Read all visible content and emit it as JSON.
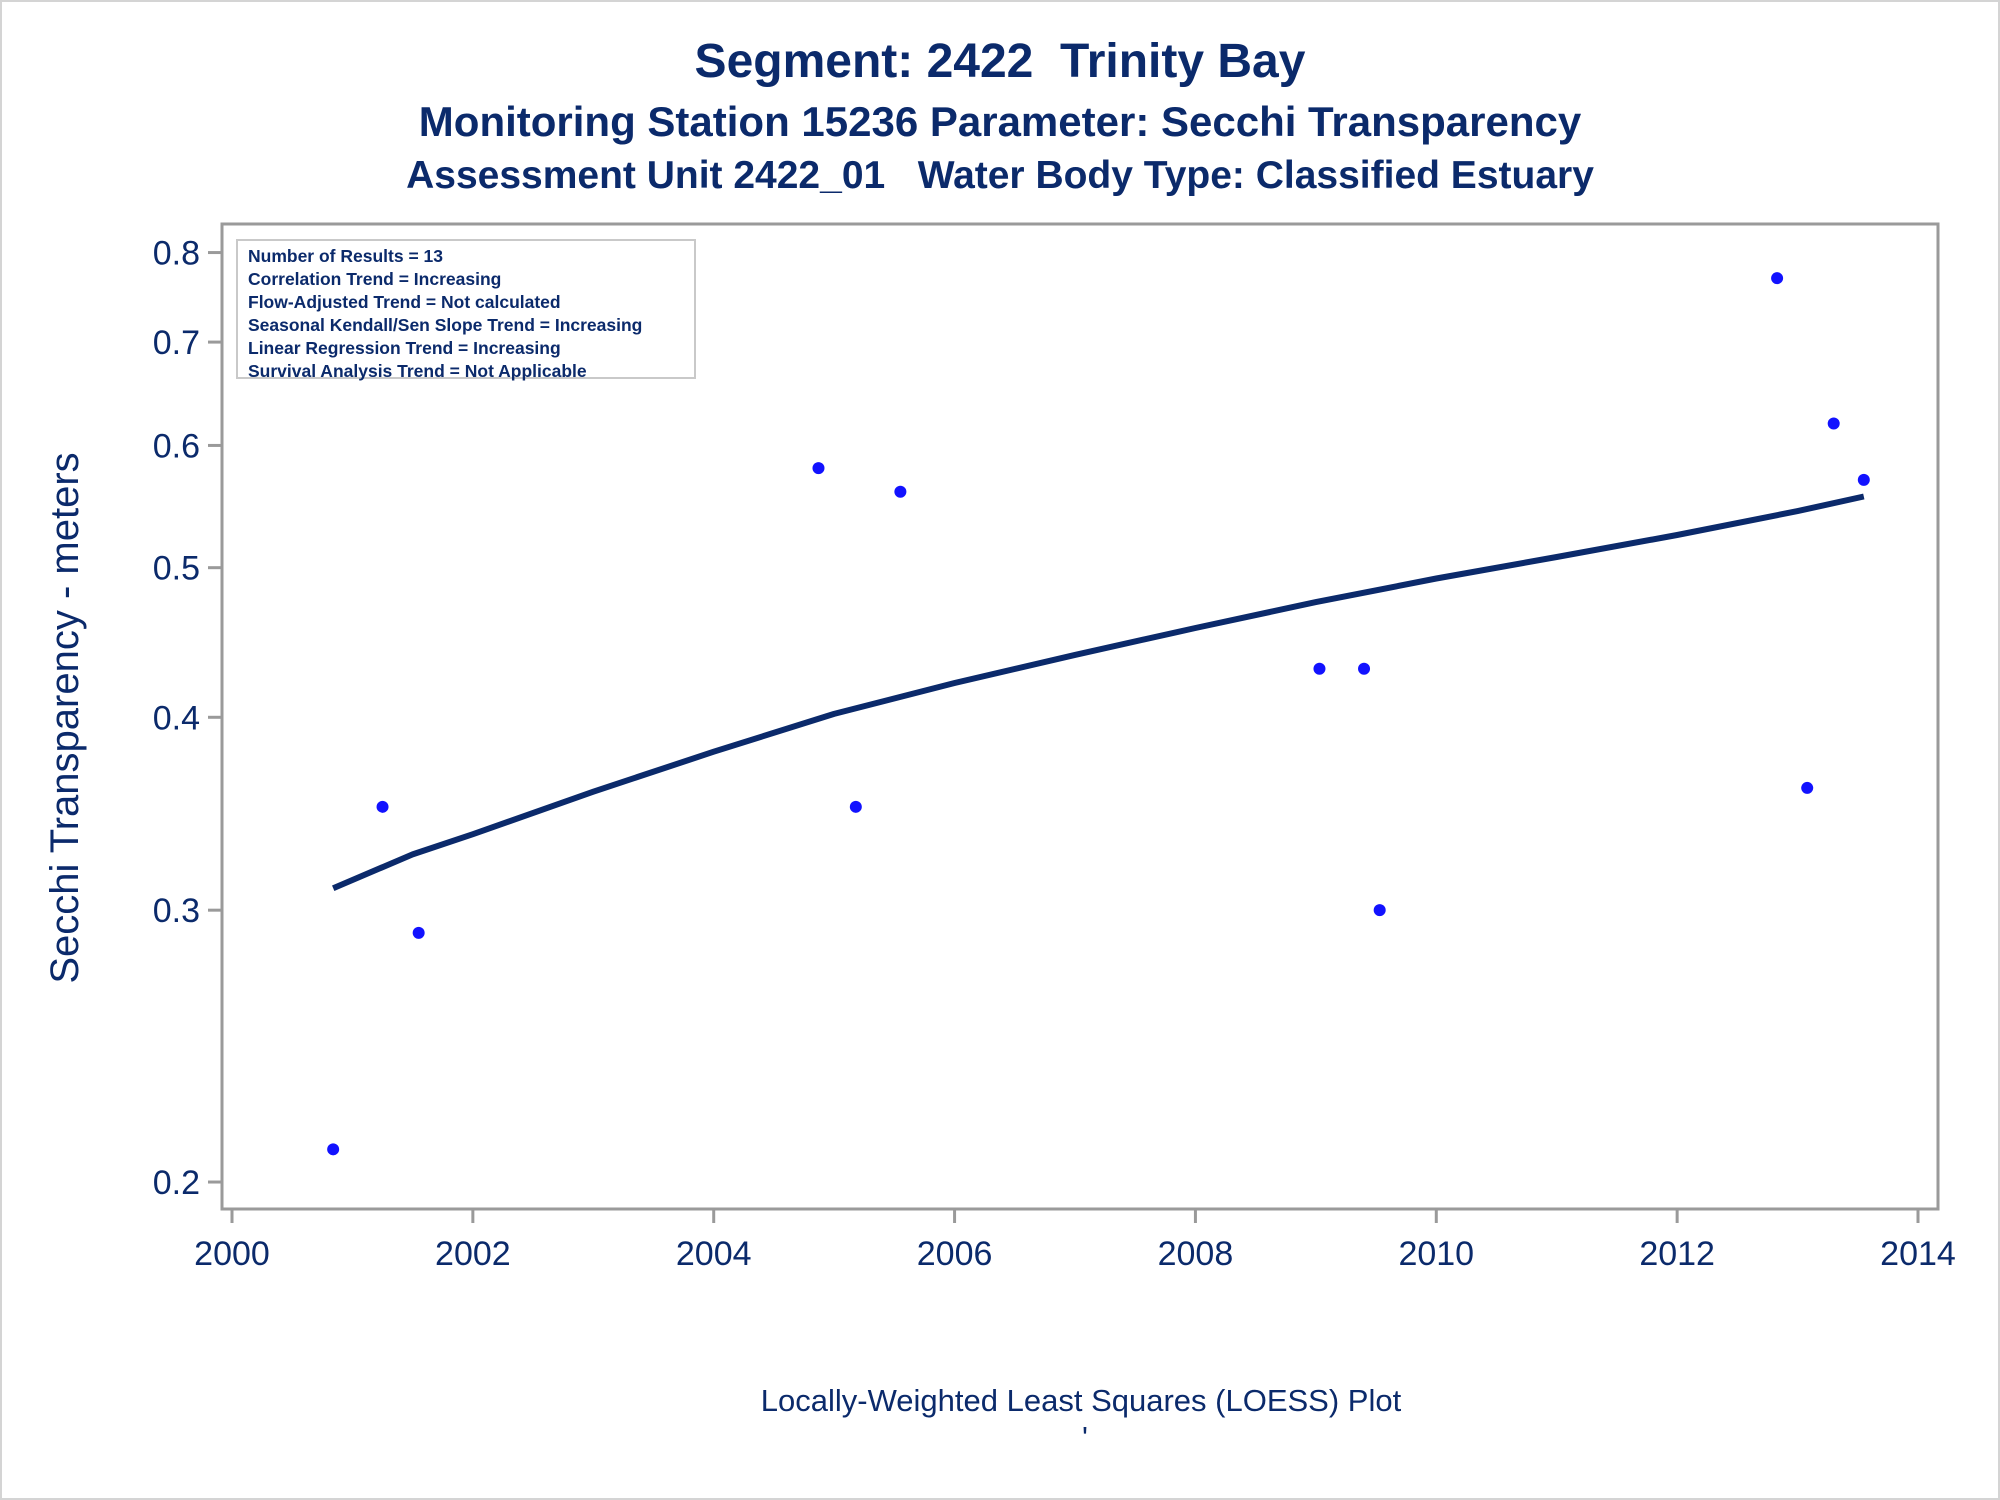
{
  "titles": {
    "line1": "Segment: 2422  Trinity Bay",
    "line2": "Monitoring Station 15236 Parameter: Secchi Transparency",
    "line3": "Assessment Unit 2422_01   Water Body Type: Classified Estuary"
  },
  "stats_box": {
    "lines": [
      "Number of Results = 13",
      "Correlation Trend = Increasing",
      "Flow-Adjusted Trend = Not calculated",
      "Seasonal Kendall/Sen Slope Trend = Increasing",
      "Linear Regression Trend = Increasing",
      "Survival Analysis Trend = Not Applicable"
    ]
  },
  "footnote": {
    "text": "Locally-Weighted Least Squares (LOESS) Plot",
    "mark": "'"
  },
  "chart_data": {
    "type": "scatter",
    "y_scale": "log",
    "ylabel": "Secchi Transparency - meters",
    "xlabel": "",
    "xlim": [
      2000,
      2014
    ],
    "ylim": [
      0.195,
      0.82
    ],
    "x_ticks": [
      2000,
      2002,
      2004,
      2006,
      2008,
      2010,
      2012,
      2014
    ],
    "y_ticks": [
      0.2,
      0.3,
      0.4,
      0.5,
      0.6,
      0.7,
      0.8
    ],
    "grid": false,
    "colors": {
      "points": "#1212ff",
      "line": "#0b2a6b",
      "text": "#0b2a6b",
      "frame": "#9a9a9a"
    },
    "points": {
      "x": [
        2000.84,
        2001.25,
        2001.55,
        2004.87,
        2005.18,
        2005.55,
        2009.03,
        2009.4,
        2009.53,
        2012.83,
        2013.08,
        2013.3,
        2013.55
      ],
      "y": [
        0.21,
        0.35,
        0.29,
        0.58,
        0.35,
        0.56,
        0.43,
        0.43,
        0.3,
        0.77,
        0.36,
        0.62,
        0.57
      ]
    },
    "loess_line": {
      "x": [
        2000.84,
        2001.5,
        2002.0,
        2003.0,
        2004.0,
        2005.0,
        2006.0,
        2007.0,
        2008.0,
        2009.0,
        2010.0,
        2011.0,
        2012.0,
        2013.0,
        2013.55
      ],
      "y": [
        0.31,
        0.326,
        0.336,
        0.358,
        0.38,
        0.402,
        0.421,
        0.439,
        0.457,
        0.475,
        0.492,
        0.508,
        0.525,
        0.544,
        0.556
      ]
    }
  }
}
